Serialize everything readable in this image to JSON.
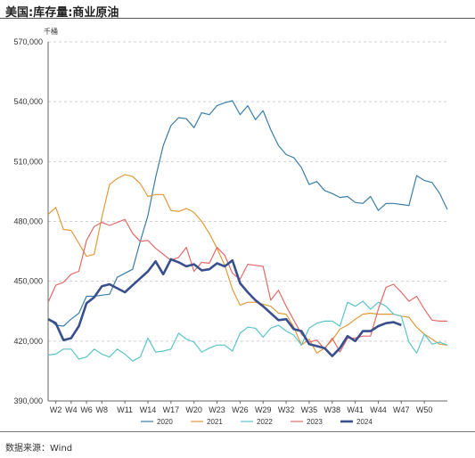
{
  "title": "美国:库存量:商业原油",
  "source": "数据来源：Wind",
  "chart_data": {
    "type": "line",
    "unit": "千桶",
    "ylim": [
      390000,
      570000
    ],
    "yticks": [
      390000,
      420000,
      450000,
      480000,
      510000,
      540000,
      570000
    ],
    "ytick_labels": [
      "390,000",
      "420,000",
      "450,000",
      "480,000",
      "510,000",
      "540,000",
      "570,000"
    ],
    "xlim": [
      1,
      53
    ],
    "x_tick_weeks": [
      2,
      4,
      6,
      8,
      11,
      14,
      17,
      20,
      23,
      26,
      29,
      32,
      35,
      38,
      41,
      44,
      47,
      50
    ],
    "x_tick_labels": [
      "W2",
      "W4",
      "W6",
      "W8",
      "W11",
      "W14",
      "W17",
      "W20",
      "W23",
      "W26",
      "W29",
      "W32",
      "W35",
      "W38",
      "W41",
      "W44",
      "W47",
      "W50"
    ],
    "grid": "horizontal dashed",
    "legend_position": "bottom",
    "series": [
      {
        "name": "2020",
        "color": "#3a7ea8",
        "width": 1.2,
        "values": [
          431500,
          428000,
          427500,
          431000,
          434000,
          442500,
          442500,
          443000,
          443500,
          452000,
          454000,
          456000,
          470000,
          483000,
          502000,
          518000,
          528000,
          532000,
          531500,
          527000,
          534500,
          533500,
          538000,
          539500,
          540500,
          533500,
          538000,
          531000,
          535500,
          526000,
          518000,
          513500,
          512000,
          507000,
          498500,
          500000,
          495500,
          494000,
          492000,
          492500,
          489500,
          489000,
          492500,
          485500,
          489000,
          489000,
          488500,
          488000,
          503000,
          500500,
          499500,
          494000,
          486000
        ]
      },
      {
        "name": "2021",
        "color": "#e09a3c",
        "width": 1.2,
        "values": [
          483500,
          487000,
          476000,
          475500,
          469000,
          462500,
          463500,
          482000,
          498500,
          501500,
          503500,
          502500,
          499000,
          492500,
          493500,
          493500,
          485500,
          485000,
          486500,
          484500,
          480000,
          474000,
          466500,
          458000,
          446000,
          438000,
          439500,
          439500,
          438500,
          437500,
          434000,
          433500,
          427000,
          418000,
          421000,
          414000,
          416500,
          420500,
          426000,
          428000,
          431000,
          433500,
          434000,
          433500,
          433500,
          433500,
          432500,
          432000,
          427000,
          423500,
          421000,
          418500,
          418000
        ]
      },
      {
        "name": "2022",
        "color": "#5cc4c8",
        "width": 1.2,
        "values": [
          413000,
          413500,
          416000,
          416000,
          411000,
          412000,
          416000,
          413500,
          412000,
          416000,
          413500,
          410000,
          412000,
          421500,
          414500,
          415000,
          416000,
          424000,
          421000,
          419500,
          414500,
          416500,
          418000,
          418000,
          415000,
          424000,
          427000,
          426500,
          422000,
          426500,
          428000,
          425000,
          423000,
          418000,
          426500,
          429000,
          430000,
          430000,
          427500,
          439500,
          437500,
          440000,
          436000,
          439500,
          437500,
          433500,
          432500,
          419500,
          414000,
          423500,
          418500,
          419500,
          418000
        ]
      },
      {
        "name": "2023",
        "color": "#e06a68",
        "width": 1.2,
        "values": [
          439500,
          448000,
          449500,
          453500,
          455000,
          470500,
          477500,
          479500,
          478000,
          479500,
          481000,
          474000,
          470000,
          470500,
          466500,
          463500,
          460500,
          462000,
          467000,
          455000,
          459500,
          459000,
          467000,
          463000,
          454000,
          451000,
          458500,
          458000,
          457500,
          440500,
          445500,
          437500,
          430500,
          423500,
          419500,
          420500,
          416000,
          421500,
          414500,
          421500,
          421500,
          422500,
          422500,
          436000,
          447000,
          448500,
          444500,
          440000,
          442500,
          436000,
          430500,
          430000,
          430000
        ]
      },
      {
        "name": "2024",
        "color": "#3a4f8e",
        "width": 2.6,
        "values": [
          431000,
          429000,
          420500,
          421500,
          427500,
          439000,
          442000,
          447500,
          448500,
          446500,
          444500,
          448000,
          451500,
          455000,
          460000,
          453500,
          461000,
          459500,
          457500,
          458500,
          455500,
          456000,
          459000,
          457500,
          460500,
          449000,
          444500,
          440500,
          437500,
          434000,
          430500,
          431000,
          426000,
          425000,
          418500,
          417500,
          416500,
          412500,
          416500,
          422500,
          420000,
          425000,
          425000,
          427500,
          429000,
          429500,
          428000
        ]
      }
    ]
  }
}
